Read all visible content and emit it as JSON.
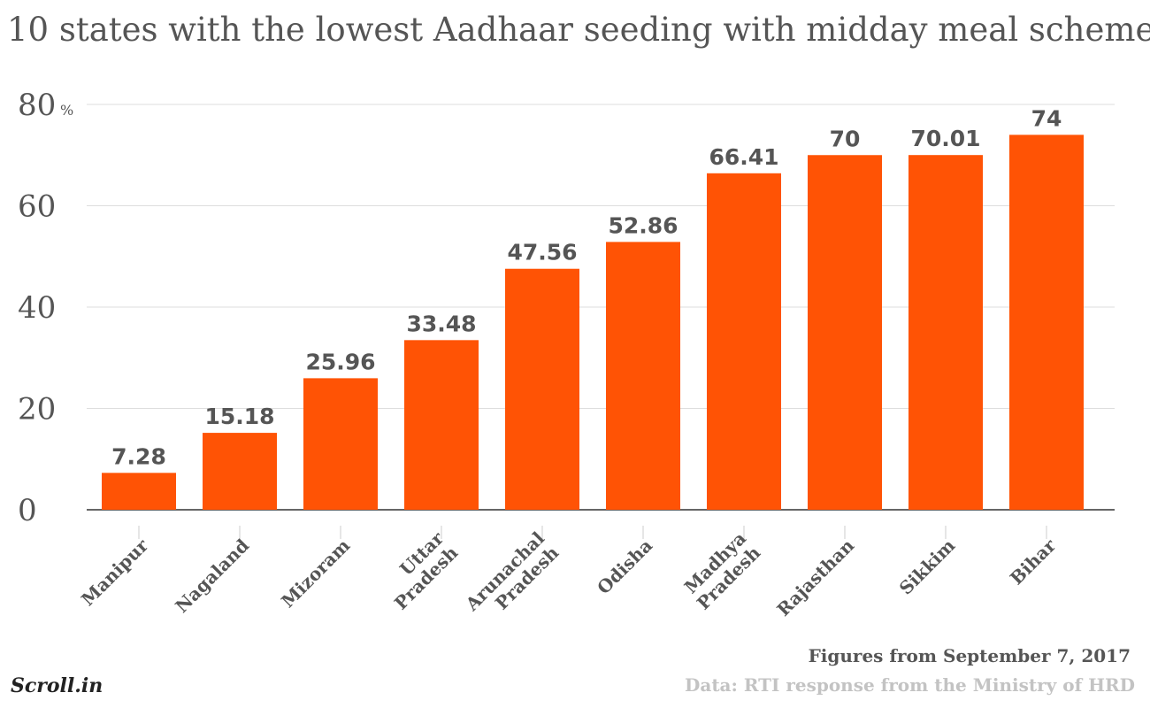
{
  "chart_data": {
    "type": "bar",
    "title": "10 states with the lowest Aadhaar seeding with midday meal scheme",
    "y_unit": "%",
    "ylim": [
      0,
      80
    ],
    "yticks": [
      0,
      20,
      40,
      60,
      80
    ],
    "grid": true,
    "categories": [
      "Manipur",
      "Nagaland",
      "Mizoram",
      "Uttar Pradesh",
      "Arunachal Pradesh",
      "Odisha",
      "Madhya Pradesh",
      "Rajasthan",
      "Sikkim",
      "Bihar"
    ],
    "values": [
      7.28,
      15.18,
      25.96,
      33.48,
      47.56,
      52.86,
      66.41,
      70,
      70.01,
      74
    ],
    "data_labels": [
      "7.28",
      "15.18",
      "25.96",
      "33.48",
      "47.56",
      "52.86",
      "66.41",
      "70",
      "70.01",
      "74"
    ],
    "bar_color": "#ff5305"
  },
  "footnote": "Figures from September 7, 2017",
  "source": "Data: RTI response from the Ministry of HRD",
  "logo": "Scroll.in"
}
